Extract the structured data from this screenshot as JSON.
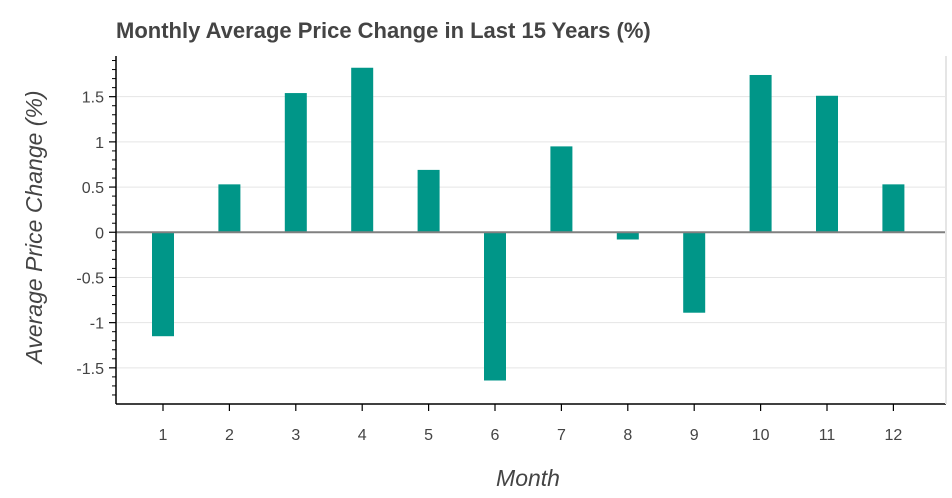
{
  "chart_data": {
    "type": "bar",
    "title": "Monthly Average Price Change in Last 15 Years (%)",
    "xlabel": "Month",
    "ylabel": "Average Price Change (%)",
    "categories": [
      "1",
      "2",
      "3",
      "4",
      "5",
      "6",
      "7",
      "8",
      "9",
      "10",
      "11",
      "12"
    ],
    "values": [
      -1.15,
      0.53,
      1.54,
      1.82,
      0.69,
      -1.64,
      0.95,
      -0.08,
      -0.89,
      1.74,
      1.51,
      0.53
    ],
    "ylim": [
      -1.9,
      1.95
    ],
    "yticks": [
      -1.5,
      -1,
      -0.5,
      0,
      0.5,
      1,
      1.5
    ],
    "ytick_labels": [
      "-1.5",
      "-1",
      "-0.5",
      "0",
      "0.5",
      "1",
      "1.5"
    ],
    "bar_color": "#009688",
    "zero_line_color": "#808080",
    "grid": true
  }
}
